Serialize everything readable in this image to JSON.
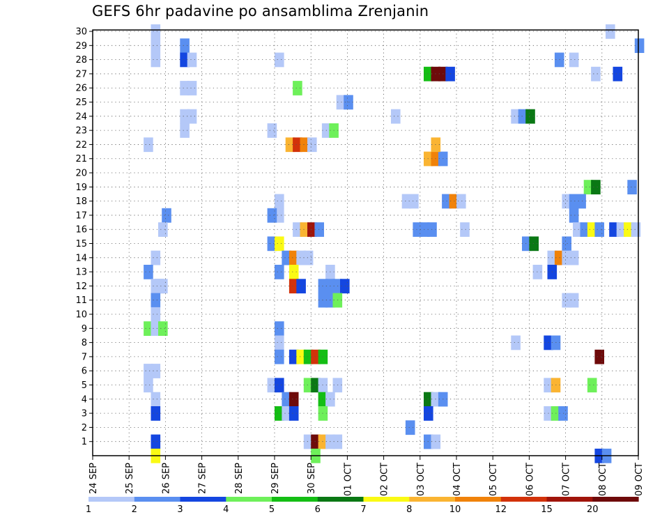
{
  "title": "GEFS 6hr padavine po ansamblima Zrenjanin",
  "chart_data": {
    "type": "heatmap",
    "title": "GEFS 6hr padavine po ansamblima Zrenjanin",
    "xlabel": "",
    "ylabel": "",
    "x_tick_labels": [
      "24 SEP",
      "25 SEP",
      "26 SEP",
      "27 SEP",
      "28 SEP",
      "29 SEP",
      "30 SEP",
      "01 OCT",
      "02 OCT",
      "03 OCT",
      "04 OCT",
      "05 OCT",
      "06 OCT",
      "07 OCT",
      "08 OCT",
      "09 OCT"
    ],
    "xlim": [
      0,
      15
    ],
    "y_tick_labels": [
      "1",
      "2",
      "3",
      "4",
      "5",
      "6",
      "7",
      "8",
      "9",
      "10",
      "11",
      "12",
      "13",
      "14",
      "15",
      "16",
      "17",
      "18",
      "19",
      "20",
      "21",
      "22",
      "23",
      "24",
      "25",
      "26",
      "27",
      "28",
      "29",
      "30"
    ],
    "ylim": [
      0,
      30
    ],
    "grid": true,
    "legend_placement": "bottom",
    "colorbar": {
      "labels": [
        "1",
        "2",
        "3",
        "4",
        "5",
        "6",
        "7",
        "8",
        "10",
        "12",
        "15",
        "20"
      ],
      "colors": [
        "#b4c8f8",
        "#5a8ff0",
        "#1446e0",
        "#6ef05a",
        "#14be14",
        "#0a7814",
        "#fafa14",
        "#fab432",
        "#f0820a",
        "#d2320a",
        "#a0140a",
        "#6e0a0a"
      ]
    },
    "cells_note": "each cell: x = forecast day offset from 24 SEP 00Z (6h steps of 0.25), y = ensemble member, c = precipitation class index 0-11",
    "cells": [
      {
        "x": 1.6,
        "y": 30,
        "c": 0
      },
      {
        "x": 1.6,
        "y": 29,
        "c": 0
      },
      {
        "x": 1.6,
        "y": 28,
        "c": 0
      },
      {
        "x": 2.4,
        "y": 29,
        "c": 1
      },
      {
        "x": 2.4,
        "y": 28,
        "c": 2
      },
      {
        "x": 2.6,
        "y": 28,
        "c": 0
      },
      {
        "x": 2.6,
        "y": 24,
        "c": 0
      },
      {
        "x": 2.4,
        "y": 24,
        "c": 0
      },
      {
        "x": 2.4,
        "y": 23,
        "c": 0
      },
      {
        "x": 5,
        "y": 28,
        "c": 0
      },
      {
        "x": 2.4,
        "y": 26,
        "c": 0
      },
      {
        "x": 2.6,
        "y": 26,
        "c": 0
      },
      {
        "x": 5.5,
        "y": 26,
        "c": 3
      },
      {
        "x": 9.1,
        "y": 27,
        "c": 4
      },
      {
        "x": 9.3,
        "y": 27,
        "c": 11
      },
      {
        "x": 9.5,
        "y": 27,
        "c": 11
      },
      {
        "x": 9.7,
        "y": 27,
        "c": 2
      },
      {
        "x": 12.7,
        "y": 28,
        "c": 1
      },
      {
        "x": 13.1,
        "y": 28,
        "c": 0
      },
      {
        "x": 13.7,
        "y": 27,
        "c": 0
      },
      {
        "x": 14.3,
        "y": 27,
        "c": 2
      },
      {
        "x": 14.9,
        "y": 29,
        "c": 1
      },
      {
        "x": 14.1,
        "y": 30,
        "c": 0
      },
      {
        "x": 6.7,
        "y": 25,
        "c": 0
      },
      {
        "x": 6.9,
        "y": 25,
        "c": 1
      },
      {
        "x": 1.4,
        "y": 22,
        "c": 0
      },
      {
        "x": 4.8,
        "y": 23,
        "c": 0
      },
      {
        "x": 6.3,
        "y": 23,
        "c": 0
      },
      {
        "x": 6.5,
        "y": 23,
        "c": 3
      },
      {
        "x": 8.2,
        "y": 24,
        "c": 0
      },
      {
        "x": 5.3,
        "y": 22,
        "c": 7
      },
      {
        "x": 5.5,
        "y": 22,
        "c": 9
      },
      {
        "x": 5.7,
        "y": 22,
        "c": 8
      },
      {
        "x": 5.9,
        "y": 22,
        "c": 0
      },
      {
        "x": 11.5,
        "y": 24,
        "c": 0
      },
      {
        "x": 11.7,
        "y": 24,
        "c": 1
      },
      {
        "x": 11.9,
        "y": 24,
        "c": 5
      },
      {
        "x": 9.1,
        "y": 21,
        "c": 7
      },
      {
        "x": 9.3,
        "y": 21,
        "c": 8
      },
      {
        "x": 9.5,
        "y": 21,
        "c": 1
      },
      {
        "x": 9.3,
        "y": 22,
        "c": 7
      },
      {
        "x": 13.5,
        "y": 19,
        "c": 3
      },
      {
        "x": 13.7,
        "y": 19,
        "c": 5
      },
      {
        "x": 14.7,
        "y": 19,
        "c": 1
      },
      {
        "x": 5,
        "y": 18,
        "c": 0
      },
      {
        "x": 5,
        "y": 17,
        "c": 0
      },
      {
        "x": 4.8,
        "y": 17,
        "c": 1
      },
      {
        "x": 1.9,
        "y": 17,
        "c": 1
      },
      {
        "x": 8.5,
        "y": 18,
        "c": 0
      },
      {
        "x": 8.7,
        "y": 18,
        "c": 0
      },
      {
        "x": 9.6,
        "y": 18,
        "c": 1
      },
      {
        "x": 9.8,
        "y": 18,
        "c": 8
      },
      {
        "x": 10,
        "y": 18,
        "c": 0
      },
      {
        "x": 12.9,
        "y": 18,
        "c": 0
      },
      {
        "x": 13.1,
        "y": 18,
        "c": 1
      },
      {
        "x": 13.3,
        "y": 18,
        "c": 1
      },
      {
        "x": 13.1,
        "y": 17,
        "c": 1
      },
      {
        "x": 1.8,
        "y": 16,
        "c": 0
      },
      {
        "x": 5.5,
        "y": 16,
        "c": 0
      },
      {
        "x": 5.7,
        "y": 16,
        "c": 7
      },
      {
        "x": 5.9,
        "y": 16,
        "c": 10
      },
      {
        "x": 6.1,
        "y": 16,
        "c": 1
      },
      {
        "x": 8.8,
        "y": 16,
        "c": 1
      },
      {
        "x": 9,
        "y": 16,
        "c": 1
      },
      {
        "x": 9.2,
        "y": 16,
        "c": 1
      },
      {
        "x": 10.1,
        "y": 16,
        "c": 0
      },
      {
        "x": 13.2,
        "y": 16,
        "c": 0
      },
      {
        "x": 13.4,
        "y": 16,
        "c": 1
      },
      {
        "x": 13.6,
        "y": 16,
        "c": 6
      },
      {
        "x": 13.8,
        "y": 16,
        "c": 1
      },
      {
        "x": 14.2,
        "y": 16,
        "c": 2
      },
      {
        "x": 14.4,
        "y": 16,
        "c": 0
      },
      {
        "x": 14.6,
        "y": 16,
        "c": 6
      },
      {
        "x": 14.8,
        "y": 16,
        "c": 0
      },
      {
        "x": 4.8,
        "y": 15,
        "c": 1
      },
      {
        "x": 5,
        "y": 15,
        "c": 6
      },
      {
        "x": 11.8,
        "y": 15,
        "c": 1
      },
      {
        "x": 12,
        "y": 15,
        "c": 5
      },
      {
        "x": 12.9,
        "y": 15,
        "c": 1
      },
      {
        "x": 1.6,
        "y": 14,
        "c": 0
      },
      {
        "x": 5.2,
        "y": 14,
        "c": 1
      },
      {
        "x": 5.4,
        "y": 14,
        "c": 8
      },
      {
        "x": 5.6,
        "y": 14,
        "c": 0
      },
      {
        "x": 5.8,
        "y": 14,
        "c": 0
      },
      {
        "x": 12.5,
        "y": 14,
        "c": 0
      },
      {
        "x": 12.7,
        "y": 14,
        "c": 8
      },
      {
        "x": 12.9,
        "y": 14,
        "c": 0
      },
      {
        "x": 13.1,
        "y": 14,
        "c": 0
      },
      {
        "x": 1.4,
        "y": 13,
        "c": 1
      },
      {
        "x": 5,
        "y": 13,
        "c": 1
      },
      {
        "x": 5.4,
        "y": 13,
        "c": 6
      },
      {
        "x": 6.4,
        "y": 13,
        "c": 0
      },
      {
        "x": 12.1,
        "y": 13,
        "c": 0
      },
      {
        "x": 12.5,
        "y": 13,
        "c": 2
      },
      {
        "x": 1.7,
        "y": 12,
        "c": 1
      },
      {
        "x": 1.6,
        "y": 12,
        "c": 0
      },
      {
        "x": 1.8,
        "y": 12,
        "c": 0
      },
      {
        "x": 5.4,
        "y": 12,
        "c": 9
      },
      {
        "x": 5.6,
        "y": 12,
        "c": 2
      },
      {
        "x": 6.2,
        "y": 12,
        "c": 1
      },
      {
        "x": 6.4,
        "y": 12,
        "c": 1
      },
      {
        "x": 6.6,
        "y": 12,
        "c": 1
      },
      {
        "x": 6.8,
        "y": 12,
        "c": 2
      },
      {
        "x": 1.6,
        "y": 11,
        "c": 1
      },
      {
        "x": 6.2,
        "y": 11,
        "c": 1
      },
      {
        "x": 6.4,
        "y": 11,
        "c": 1
      },
      {
        "x": 6.6,
        "y": 11,
        "c": 3
      },
      {
        "x": 12.9,
        "y": 11,
        "c": 0
      },
      {
        "x": 13.1,
        "y": 11,
        "c": 0
      },
      {
        "x": 1.4,
        "y": 9,
        "c": 3
      },
      {
        "x": 1.6,
        "y": 10,
        "c": 0
      },
      {
        "x": 5,
        "y": 9,
        "c": 1
      },
      {
        "x": 5,
        "y": 8,
        "c": 0
      },
      {
        "x": 1.6,
        "y": 9,
        "c": 0
      },
      {
        "x": 1.8,
        "y": 9,
        "c": 3
      },
      {
        "x": 11.5,
        "y": 8,
        "c": 0
      },
      {
        "x": 12.4,
        "y": 8,
        "c": 2
      },
      {
        "x": 12.6,
        "y": 8,
        "c": 1
      },
      {
        "x": 5,
        "y": 7,
        "c": 1
      },
      {
        "x": 5.4,
        "y": 7,
        "c": 2
      },
      {
        "x": 5.6,
        "y": 7,
        "c": 6
      },
      {
        "x": 5.8,
        "y": 7,
        "c": 4
      },
      {
        "x": 6,
        "y": 7,
        "c": 9
      },
      {
        "x": 6.2,
        "y": 7,
        "c": 4
      },
      {
        "x": 13.8,
        "y": 7,
        "c": 11
      },
      {
        "x": 1.4,
        "y": 6,
        "c": 0
      },
      {
        "x": 1.6,
        "y": 6,
        "c": 0
      },
      {
        "x": 1.4,
        "y": 5,
        "c": 0
      },
      {
        "x": 4.8,
        "y": 5,
        "c": 0
      },
      {
        "x": 5,
        "y": 5,
        "c": 2
      },
      {
        "x": 5.8,
        "y": 5,
        "c": 3
      },
      {
        "x": 6,
        "y": 5,
        "c": 5
      },
      {
        "x": 6.2,
        "y": 5,
        "c": 0
      },
      {
        "x": 6.6,
        "y": 5,
        "c": 0
      },
      {
        "x": 12.4,
        "y": 5,
        "c": 0
      },
      {
        "x": 12.6,
        "y": 5,
        "c": 7
      },
      {
        "x": 13.6,
        "y": 5,
        "c": 3
      },
      {
        "x": 1.6,
        "y": 4,
        "c": 0
      },
      {
        "x": 5.2,
        "y": 4,
        "c": 1
      },
      {
        "x": 5.4,
        "y": 4,
        "c": 11
      },
      {
        "x": 6.2,
        "y": 4,
        "c": 4
      },
      {
        "x": 6.4,
        "y": 4,
        "c": 0
      },
      {
        "x": 9.1,
        "y": 4,
        "c": 5
      },
      {
        "x": 9.3,
        "y": 4,
        "c": 0
      },
      {
        "x": 9.5,
        "y": 4,
        "c": 1
      },
      {
        "x": 1.6,
        "y": 3,
        "c": 2
      },
      {
        "x": 5,
        "y": 3,
        "c": 4
      },
      {
        "x": 5.2,
        "y": 3,
        "c": 0
      },
      {
        "x": 5.4,
        "y": 3,
        "c": 2
      },
      {
        "x": 6.2,
        "y": 3,
        "c": 3
      },
      {
        "x": 9.1,
        "y": 3,
        "c": 2
      },
      {
        "x": 12.4,
        "y": 3,
        "c": 0
      },
      {
        "x": 12.6,
        "y": 3,
        "c": 3
      },
      {
        "x": 12.8,
        "y": 3,
        "c": 1
      },
      {
        "x": 8.6,
        "y": 2,
        "c": 1
      },
      {
        "x": 1.6,
        "y": 1,
        "c": 2
      },
      {
        "x": 5.8,
        "y": 1,
        "c": 0
      },
      {
        "x": 6,
        "y": 1,
        "c": 11
      },
      {
        "x": 6.2,
        "y": 1,
        "c": 7
      },
      {
        "x": 6.4,
        "y": 1,
        "c": 0
      },
      {
        "x": 6.6,
        "y": 1,
        "c": 0
      },
      {
        "x": 9.1,
        "y": 1,
        "c": 1
      },
      {
        "x": 9.3,
        "y": 1,
        "c": 0
      },
      {
        "x": 1.6,
        "y": 0,
        "c": 6
      },
      {
        "x": 6,
        "y": 0,
        "c": 3
      },
      {
        "x": 13.8,
        "y": 0,
        "c": 2
      },
      {
        "x": 14,
        "y": 0,
        "c": 1
      }
    ]
  }
}
